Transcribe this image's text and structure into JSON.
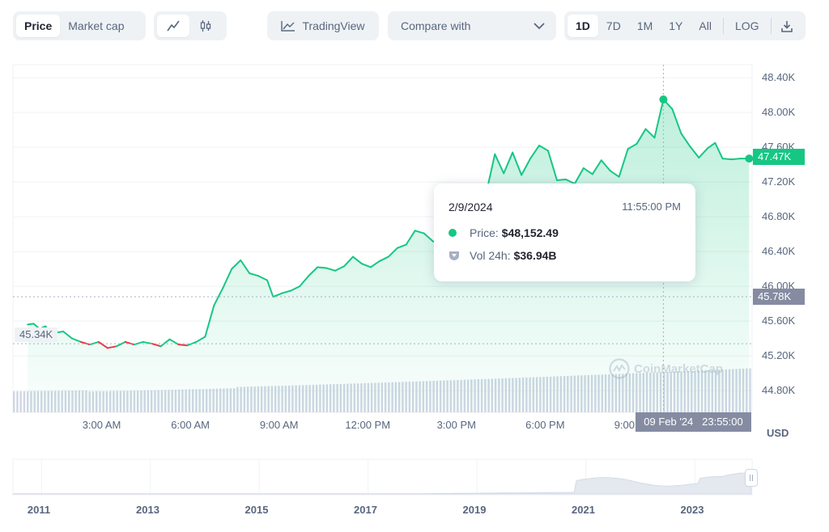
{
  "toolbar": {
    "price_tab": "Price",
    "market_cap_tab": "Market cap",
    "tradingview_label": "TradingView",
    "compare_label": "Compare with",
    "ranges": [
      "1D",
      "7D",
      "1M",
      "1Y",
      "All"
    ],
    "log_label": "LOG"
  },
  "watermark": "CoinMarketCap",
  "tooltip": {
    "date": "2/9/2024",
    "time": "11:55:00 PM",
    "price_label": "Price:",
    "price_value": "$48,152.49",
    "vol_label": "Vol 24h:",
    "vol_value": "$36.94B"
  },
  "colors": {
    "up": "#16c784",
    "down": "#ea3943",
    "muted": "#58667e",
    "tag_gray": "#858ca2"
  },
  "chart_data": {
    "type": "line",
    "currency": "USD",
    "x_ticks": [
      "3:00 AM",
      "6:00 AM",
      "9:00 AM",
      "12:00 PM",
      "3:00 PM",
      "6:00 PM",
      "9:00 PM"
    ],
    "y_ticks": [
      "48.40K",
      "48.00K",
      "47.60K",
      "47.20K",
      "46.80K",
      "46.40K",
      "46.00K",
      "45.60K",
      "45.20K",
      "44.80K"
    ],
    "y_tick_values": [
      48400,
      48000,
      47600,
      47200,
      46800,
      46400,
      46000,
      45600,
      45200,
      44800
    ],
    "ylim": [
      44550,
      48550
    ],
    "open_price": 45340,
    "open_label": "45.34K",
    "current_price": 47470,
    "current_label": "47.47K",
    "cursor_price_label": "45.78K",
    "cursor_time_label": "09 Feb '24   23:55:00",
    "series": [
      {
        "hours": [
          0.5,
          0.7,
          0.9,
          1.1,
          1.3,
          1.5,
          1.7,
          2.0,
          2.3,
          2.6,
          2.9,
          3.2,
          3.5,
          3.8,
          4.1,
          4.4,
          4.7,
          5.0,
          5.3,
          5.6,
          5.9,
          6.2,
          6.5,
          6.8,
          7.1,
          7.4,
          7.7,
          8.0,
          8.3,
          8.6,
          8.8,
          9.1,
          9.4,
          9.7,
          10.0,
          10.3,
          10.6,
          10.9,
          11.2,
          11.5,
          11.8,
          12.1,
          12.4,
          12.7,
          13.0,
          13.3,
          13.6,
          13.9,
          14.2,
          14.5,
          14.8,
          15.1,
          15.4,
          15.7,
          16.0,
          16.3,
          16.6,
          16.9,
          17.2,
          17.5,
          17.8,
          18.1,
          18.4,
          18.7,
          19.0,
          19.3,
          19.6,
          19.9,
          20.2,
          20.5,
          20.8,
          21.1,
          21.4,
          21.7,
          22.0,
          22.3,
          22.6,
          22.9,
          23.2,
          23.5,
          23.75,
          24.0,
          24.3,
          24.6,
          24.9
        ],
        "values": [
          45560,
          45570,
          45510,
          45540,
          45440,
          45470,
          45480,
          45400,
          45360,
          45330,
          45360,
          45290,
          45310,
          45360,
          45330,
          45360,
          45340,
          45310,
          45390,
          45330,
          45320,
          45360,
          45420,
          45780,
          45980,
          46200,
          46300,
          46150,
          46120,
          46070,
          45880,
          45920,
          45950,
          46000,
          46120,
          46220,
          46210,
          46180,
          46230,
          46340,
          46260,
          46220,
          46290,
          46340,
          46440,
          46480,
          46640,
          46610,
          46520,
          46460,
          46570,
          46660,
          46780,
          46720,
          47060,
          47520,
          47300,
          47540,
          47280,
          47470,
          47620,
          47560,
          47220,
          47230,
          47180,
          47360,
          47290,
          47450,
          47330,
          47260,
          47580,
          47640,
          47810,
          47710,
          48150,
          48040,
          47760,
          47610,
          47480,
          47590,
          47650,
          47470,
          47460,
          47470,
          47470
        ]
      }
    ],
    "volume": {
      "label": "Vol 24h",
      "start_fraction": 0.26,
      "end_fraction": 0.38,
      "min_fraction": 0.255
    },
    "navigator": {
      "year_ticks": [
        "2011",
        "2013",
        "2015",
        "2017",
        "2019",
        "2021",
        "2023"
      ]
    }
  }
}
